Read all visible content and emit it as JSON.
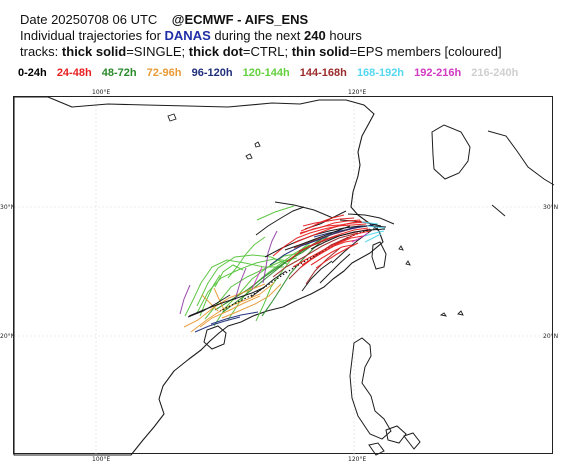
{
  "header": {
    "date_label": "Date 20250708 06 UTC",
    "brand": "@ECMWF - AIFS_ENS",
    "traj_prefix": "Individual trajectories for",
    "storm_name": "DANAS",
    "traj_mid": "during the next",
    "horizon": "240",
    "horizon_unit": "hours",
    "tracks_prefix": "tracks:",
    "thick_solid": "thick solid",
    "single": "=SINGLE;",
    "thick_dot": "thick dot",
    "ctrl": "=CTRL;",
    "thin_solid": "thin solid",
    "eps": "=EPS members [coloured]"
  },
  "legend": [
    {
      "label": "0-24h",
      "color": "#000000"
    },
    {
      "label": "24-48h",
      "color": "#e82020"
    },
    {
      "label": "48-72h",
      "color": "#2a8a2a"
    },
    {
      "label": "72-96h",
      "color": "#e89a35"
    },
    {
      "label": "96-120h",
      "color": "#1f2f7a"
    },
    {
      "label": "120-144h",
      "color": "#63d03d"
    },
    {
      "label": "144-168h",
      "color": "#9b2b2b"
    },
    {
      "label": "168-192h",
      "color": "#56d7f0"
    },
    {
      "label": "192-216h",
      "color": "#d23ac2"
    },
    {
      "label": "216-240h",
      "color": "#cfcfcf"
    }
  ],
  "axes": {
    "top_100": "100°E",
    "top_120": "120°E",
    "bottom_100": "100°E",
    "bottom_120": "120°E",
    "left_30": "30°N",
    "left_20": "20°N",
    "right_30": "30°N",
    "right_20": "20°N"
  },
  "map": {
    "coast_color": "#222222",
    "track_colors": [
      "#000000",
      "#e82020",
      "#2a8a2a",
      "#e89a35",
      "#1f2f7a",
      "#63d03d",
      "#9b2b2b",
      "#56d7f0",
      "#d23ac2",
      "#cfcfcf"
    ]
  }
}
